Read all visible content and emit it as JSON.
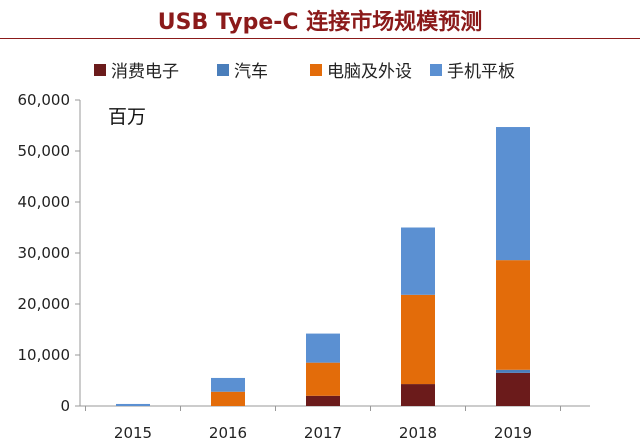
{
  "title": "USB Type-C 连接市场规模预测",
  "chart_data": {
    "type": "bar",
    "stacked": true,
    "unit_label": "百万",
    "categories": [
      "2015",
      "2016",
      "2017",
      "2018",
      "2019"
    ],
    "ylim": [
      0,
      60000
    ],
    "yticks": [
      "0",
      "10,000",
      "20,000",
      "30,000",
      "40,000",
      "50,000",
      "60,000"
    ],
    "legend_position": "top",
    "series": [
      {
        "name": "消费电子",
        "color": "#6b1b1b",
        "values": [
          0,
          0,
          2000,
          4300,
          6500
        ]
      },
      {
        "name": "汽车",
        "color": "#4a7ebb",
        "values": [
          0,
          0,
          0,
          0,
          600
        ]
      },
      {
        "name": "电脑及外设",
        "color": "#e36c0a",
        "values": [
          0,
          2800,
          6500,
          17500,
          21500
        ]
      },
      {
        "name": "手机平板",
        "color": "#5b90d2",
        "values": [
          400,
          2700,
          5700,
          13200,
          26100
        ]
      }
    ]
  }
}
